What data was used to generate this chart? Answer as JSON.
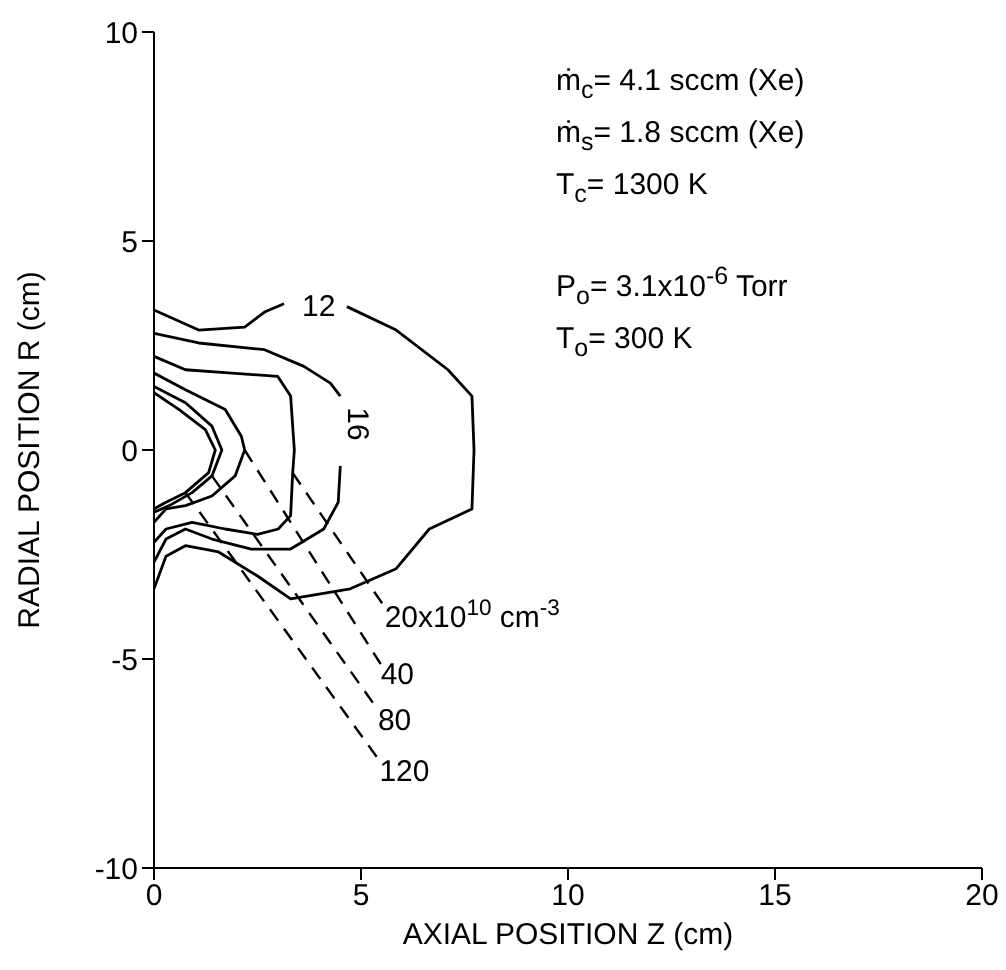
{
  "chart_data": {
    "type": "line",
    "xlabel": "AXIAL POSITION Z (cm)",
    "ylabel": "RADIAL POSITION R (cm)",
    "xlim": [
      0,
      20
    ],
    "xticks": [
      0,
      5,
      10,
      15,
      20
    ],
    "ylim": [
      -10,
      10
    ],
    "yticks": [
      -10,
      -5,
      0,
      5,
      10
    ],
    "grid": false,
    "legend": false,
    "marker": "none",
    "line_style": "solid",
    "series": [
      {
        "name": "12",
        "color": "#000000",
        "x": [
          0,
          1.08,
          2.19,
          2.67,
          3.14,
          null,
          4.66,
          5.85,
          7.1,
          7.68,
          7.73,
          7.68,
          6.65,
          5.85,
          4.74,
          3.3,
          2.51,
          1.56,
          0.76,
          0.29,
          0
        ],
        "values": [
          3.35,
          2.87,
          2.94,
          3.3,
          3.5,
          null,
          3.43,
          2.87,
          1.92,
          1.29,
          0,
          -1.41,
          -1.89,
          -2.84,
          -3.32,
          -3.56,
          -3.02,
          -2.44,
          -2.29,
          -2.54,
          -3.32
        ]
      },
      {
        "name": "16",
        "color": "#000000",
        "x": [
          0,
          1.08,
          2.67,
          3.62,
          4.26,
          4.5,
          null,
          4.5,
          4.45,
          4.1,
          3.3,
          2.35,
          1.4,
          0.76,
          0.29,
          0
        ],
        "values": [
          2.79,
          2.56,
          2.4,
          2.0,
          1.6,
          1.29,
          null,
          -0.38,
          -1.25,
          -1.89,
          -2.37,
          -2.37,
          -2.13,
          -1.89,
          -2.13,
          -2.68
        ]
      },
      {
        "name": "20x10$^{10}$ cm$^{-3}$",
        "color": "#000000",
        "x": [
          0,
          0.76,
          1.88,
          2.99,
          3.3,
          3.39,
          3.35,
          3.3,
          3.0,
          2.5,
          1.72,
          0.92,
          0.29,
          0
        ],
        "values": [
          2.24,
          1.92,
          1.84,
          1.76,
          1.29,
          0,
          -0.55,
          -1.57,
          -1.89,
          -2.02,
          -1.89,
          -1.73,
          -1.89,
          -2.21
        ]
      },
      {
        "name": "40",
        "color": "#000000",
        "x": [
          0,
          0.76,
          1.72,
          2.11,
          2.19,
          1.96,
          1.4,
          0.76,
          0.29,
          0
        ],
        "values": [
          1.84,
          1.44,
          0.97,
          0.33,
          0,
          -0.62,
          -1.1,
          -1.33,
          -1.41,
          -1.73
        ]
      },
      {
        "name": "80",
        "color": "#000000",
        "x": [
          0,
          0.76,
          1.4,
          1.64,
          1.4,
          0.92,
          0.37,
          0
        ],
        "values": [
          1.52,
          1.13,
          0.57,
          0,
          -0.62,
          -1.02,
          -1.33,
          -1.49
        ]
      },
      {
        "name": "120",
        "color": "#000000",
        "x": [
          0,
          0.6,
          1.24,
          1.48,
          1.32,
          0.76,
          0.29,
          0
        ],
        "values": [
          1.37,
          0.97,
          0.49,
          0,
          -0.54,
          -1.02,
          -1.25,
          -1.41
        ]
      }
    ],
    "annotations": [
      "ṁ$_{c}$= 4.1 sccm (Xe)",
      "ṁ$_{s}$= 1.8 sccm (Xe)",
      "T$_{c}$= 1300 K",
      "P$_{o}$= 3.1x10$^{-6}$ Torr",
      "T$_{o}$= 300 K"
    ]
  }
}
